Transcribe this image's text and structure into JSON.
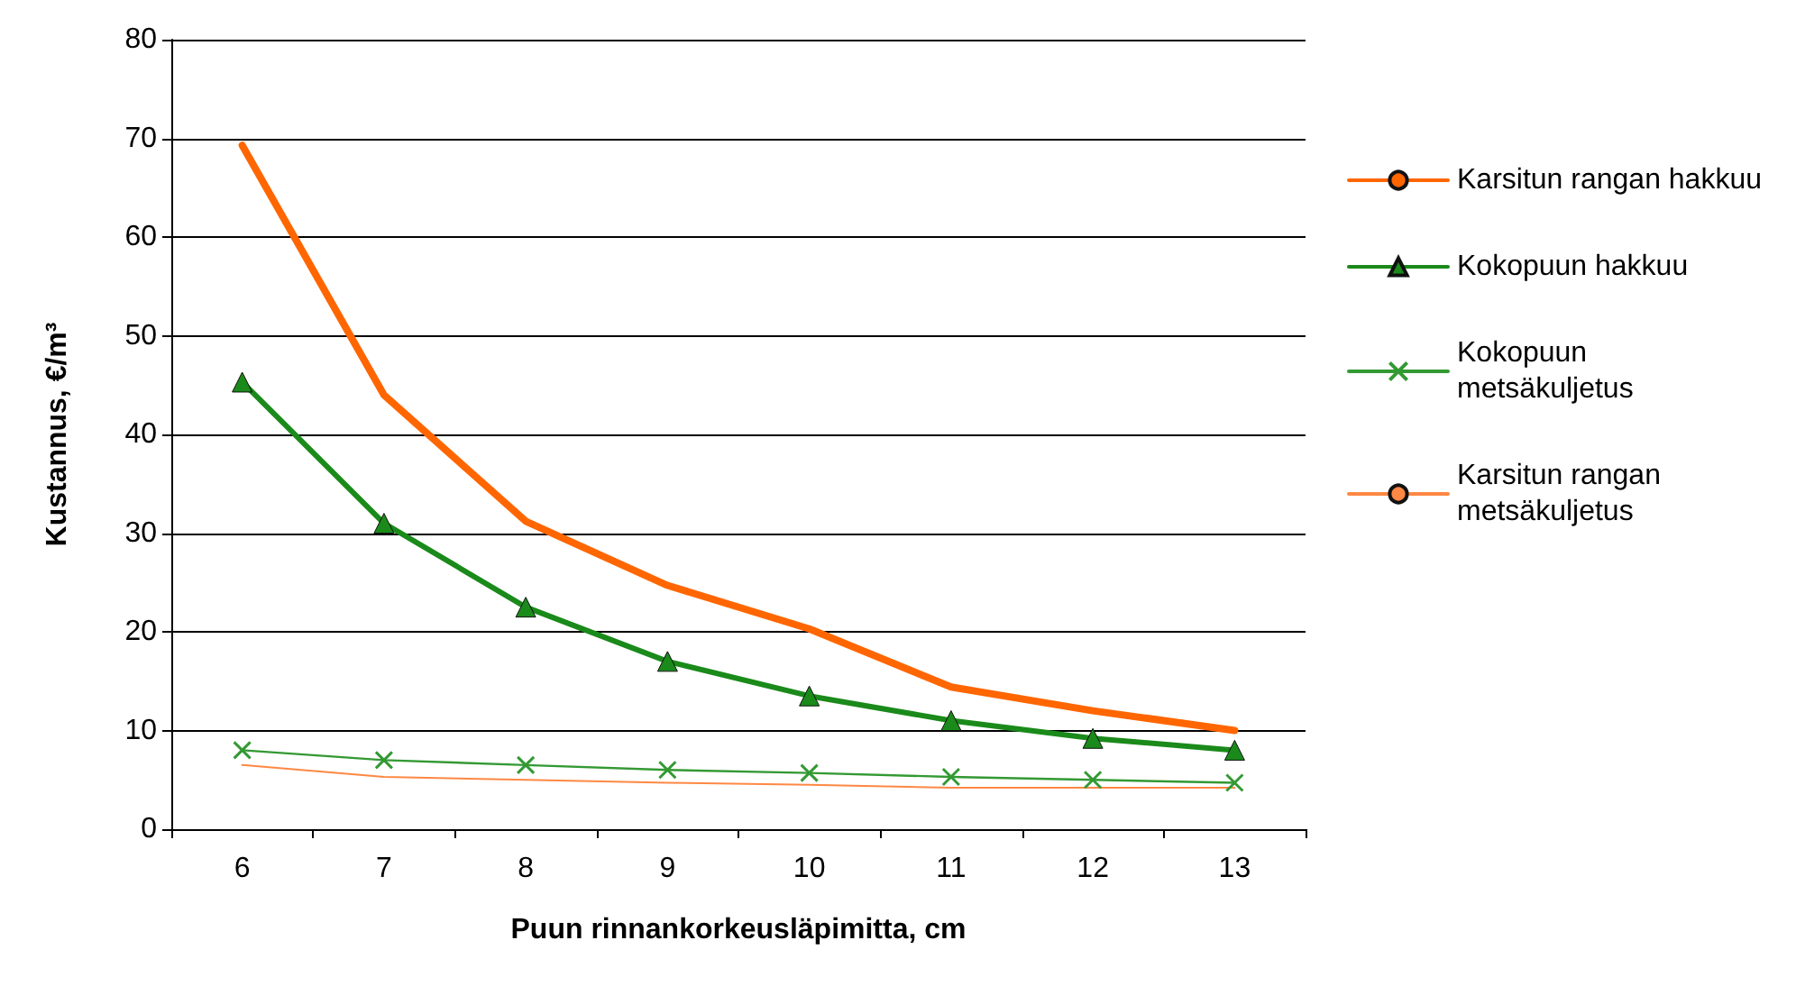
{
  "chart_data": {
    "type": "line",
    "xlabel": "Puun rinnankorkeusläpimitta, cm",
    "ylabel": "Kustannus, €/m³",
    "categories": [
      "6",
      "7",
      "8",
      "9",
      "10",
      "11",
      "12",
      "13"
    ],
    "series": [
      {
        "name": "Karsitun rangan hakkuu",
        "color": "#ff6600",
        "marker": "none",
        "values": [
          69.3,
          44,
          31.2,
          24.7,
          20.3,
          14.4,
          12,
          10
        ]
      },
      {
        "name": "Kokopuun hakkuu",
        "color": "#1a8a1a",
        "marker": "triangle",
        "values": [
          45.3,
          31,
          22.5,
          17,
          13.5,
          11,
          9.2,
          8
        ]
      },
      {
        "name": "Kokopuun metsäkuljetus",
        "color": "#339933",
        "marker": "cross",
        "values": [
          8,
          7,
          6.5,
          6,
          5.7,
          5.3,
          5,
          4.7
        ]
      },
      {
        "name": "Karsitun rangan metsäkuljetus",
        "color": "#ff8844",
        "marker": "none",
        "values": [
          6.5,
          5.3,
          5,
          4.7,
          4.5,
          4.2,
          4.2,
          4.2
        ]
      }
    ],
    "ylim": [
      0,
      80
    ],
    "yticks": [
      0,
      10,
      20,
      30,
      40,
      50,
      60,
      70,
      80
    ],
    "grid": "y",
    "legend": "right",
    "line_style": "solid"
  }
}
